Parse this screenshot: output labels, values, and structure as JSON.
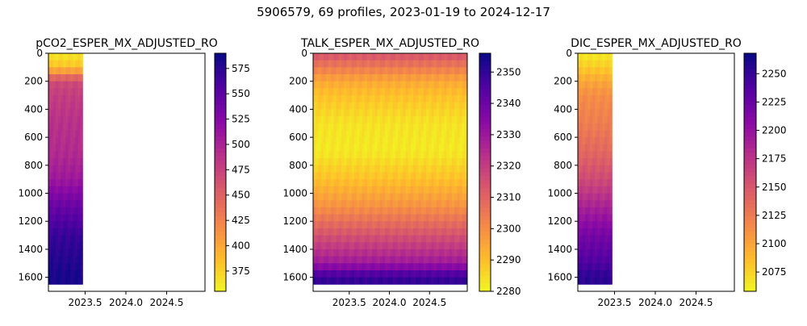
{
  "figure": {
    "suptitle": "5906579, 69 profiles, 2023-01-19 to 2024-12-17"
  },
  "chart_data": [
    {
      "type": "heatmap",
      "title": "pCO2_ESPER_MX_ADJUSTED_RO",
      "colormap": "plasma_r",
      "x_range": [
        2023.05,
        2024.97
      ],
      "y_range": [
        1700,
        0
      ],
      "y_inverted": true,
      "x_ticks": [
        2023.5,
        2024.0,
        2024.5
      ],
      "x_tick_labels": [
        "2023.5",
        "2024.0",
        "2024.5"
      ],
      "y_ticks": [
        0,
        200,
        400,
        600,
        800,
        1000,
        1200,
        1400,
        1600
      ],
      "y_tick_labels": [
        "0",
        "200",
        "400",
        "600",
        "800",
        "1000",
        "1200",
        "1400",
        "1600"
      ],
      "data_x_range": [
        2023.05,
        2023.47
      ],
      "colorbar": {
        "range": [
          355,
          590
        ],
        "ticks": [
          375,
          400,
          425,
          450,
          475,
          500,
          525,
          550,
          575
        ],
        "tick_labels": [
          "375",
          "400",
          "425",
          "450",
          "475",
          "500",
          "525",
          "550",
          "575"
        ]
      },
      "depth_profile": [
        [
          0,
          365
        ],
        [
          100,
          385
        ],
        [
          200,
          470
        ],
        [
          300,
          480
        ],
        [
          500,
          490
        ],
        [
          700,
          495
        ],
        [
          900,
          510
        ],
        [
          1100,
          545
        ],
        [
          1300,
          570
        ],
        [
          1500,
          580
        ],
        [
          1600,
          585
        ]
      ]
    },
    {
      "type": "heatmap",
      "title": "TALK_ESPER_MX_ADJUSTED_RO",
      "colormap": "plasma_r",
      "x_range": [
        2023.05,
        2024.97
      ],
      "y_range": [
        1700,
        0
      ],
      "y_inverted": true,
      "x_ticks": [
        2023.5,
        2024.0,
        2024.5
      ],
      "x_tick_labels": [
        "2023.5",
        "2024.0",
        "2024.5"
      ],
      "y_ticks": [
        0,
        200,
        400,
        600,
        800,
        1000,
        1200,
        1400,
        1600
      ],
      "y_tick_labels": [
        "0",
        "200",
        "400",
        "600",
        "800",
        "1000",
        "1200",
        "1400",
        "1600"
      ],
      "data_x_range": [
        2023.05,
        2024.97
      ],
      "colorbar": {
        "range": [
          2280,
          2356
        ],
        "ticks": [
          2280,
          2290,
          2300,
          2310,
          2320,
          2330,
          2340,
          2350
        ],
        "tick_labels": [
          "2280",
          "2290",
          "2300",
          "2310",
          "2320",
          "2330",
          "2340",
          "2350"
        ]
      },
      "depth_profile": [
        [
          0,
          2315
        ],
        [
          100,
          2305
        ],
        [
          200,
          2295
        ],
        [
          300,
          2290
        ],
        [
          500,
          2284
        ],
        [
          700,
          2283
        ],
        [
          900,
          2290
        ],
        [
          1100,
          2300
        ],
        [
          1300,
          2315
        ],
        [
          1500,
          2330
        ],
        [
          1600,
          2350
        ]
      ]
    },
    {
      "type": "heatmap",
      "title": "DIC_ESPER_MX_ADJUSTED_RO",
      "colormap": "plasma_r",
      "x_range": [
        2023.05,
        2024.97
      ],
      "y_range": [
        1700,
        0
      ],
      "y_inverted": true,
      "x_ticks": [
        2023.5,
        2024.0,
        2024.5
      ],
      "x_tick_labels": [
        "2023.5",
        "2024.0",
        "2024.5"
      ],
      "y_ticks": [
        0,
        200,
        400,
        600,
        800,
        1000,
        1200,
        1400,
        1600
      ],
      "y_tick_labels": [
        "0",
        "200",
        "400",
        "600",
        "800",
        "1000",
        "1200",
        "1400",
        "1600"
      ],
      "data_x_range": [
        2023.05,
        2023.47
      ],
      "colorbar": {
        "range": [
          2058,
          2268
        ],
        "ticks": [
          2075,
          2100,
          2125,
          2150,
          2175,
          2200,
          2225,
          2250
        ],
        "tick_labels": [
          "2075",
          "2100",
          "2125",
          "2150",
          "2175",
          "2200",
          "2225",
          "2250"
        ]
      },
      "depth_profile": [
        [
          0,
          2065
        ],
        [
          100,
          2080
        ],
        [
          200,
          2100
        ],
        [
          300,
          2115
        ],
        [
          500,
          2125
        ],
        [
          700,
          2140
        ],
        [
          900,
          2160
        ],
        [
          1100,
          2190
        ],
        [
          1300,
          2220
        ],
        [
          1500,
          2240
        ],
        [
          1600,
          2255
        ]
      ]
    }
  ]
}
